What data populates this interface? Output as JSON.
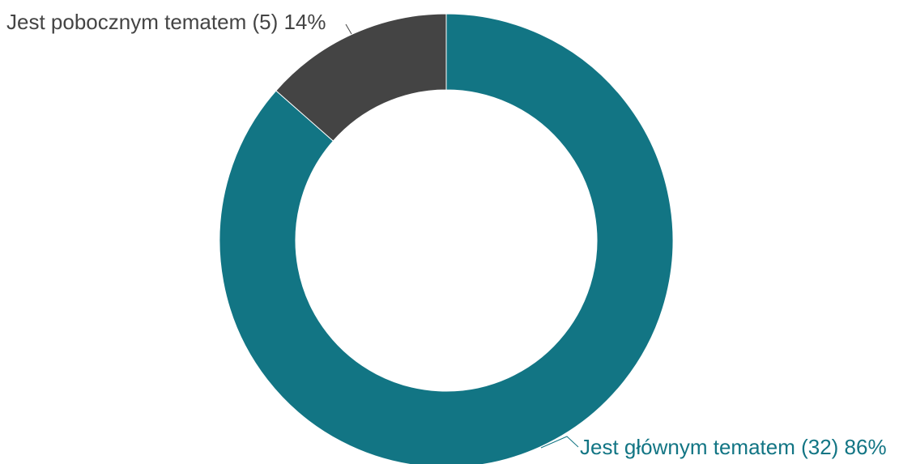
{
  "chart_data": {
    "type": "pie",
    "variant": "donut",
    "slices": [
      {
        "label": "Jest głównym tematem",
        "count": 32,
        "percent": 86,
        "display": "Jest głównym tematem (32) 86%",
        "color": "#127584"
      },
      {
        "label": "Jest pobocznym tematem",
        "count": 5,
        "percent": 14,
        "display": "Jest pobocznym tematem (5) 14%",
        "color": "#444444"
      }
    ],
    "legend": "none",
    "label_color_main": "#127584",
    "label_color_side": "#444444"
  }
}
